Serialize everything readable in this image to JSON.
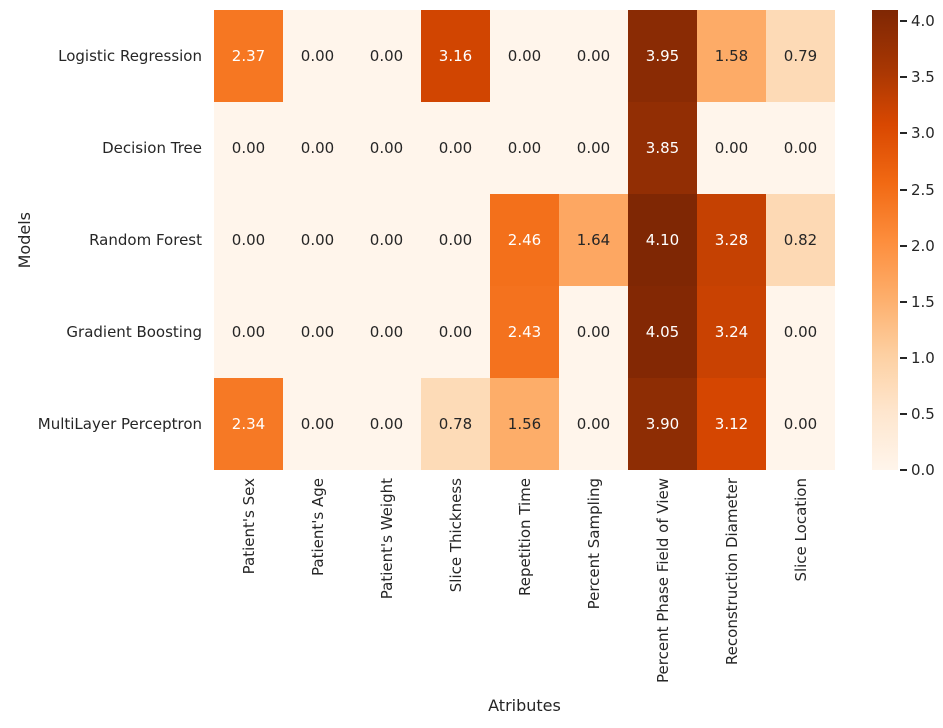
{
  "chart_data": {
    "type": "heatmap",
    "xlabel": "Atributes",
    "ylabel": "Models",
    "rows": [
      "Logistic Regression",
      "Decision Tree",
      "Random Forest",
      "Gradient Boosting",
      "MultiLayer Perceptron"
    ],
    "columns": [
      "Patient's Sex",
      "Patient's Age",
      "Patient's Weight",
      "Slice Thickness",
      "Repetition Time",
      "Percent Sampling",
      "Percent Phase Field of View",
      "Reconstruction Diameter",
      "Slice Location"
    ],
    "values": [
      [
        2.37,
        0.0,
        0.0,
        3.16,
        0.0,
        0.0,
        3.95,
        1.58,
        0.79
      ],
      [
        0.0,
        0.0,
        0.0,
        0.0,
        0.0,
        0.0,
        3.85,
        0.0,
        0.0
      ],
      [
        0.0,
        0.0,
        0.0,
        0.0,
        2.46,
        1.64,
        4.1,
        3.28,
        0.82
      ],
      [
        0.0,
        0.0,
        0.0,
        0.0,
        2.43,
        0.0,
        4.05,
        3.24,
        0.0
      ],
      [
        2.34,
        0.0,
        0.0,
        0.78,
        1.56,
        0.0,
        3.9,
        3.12,
        0.0
      ]
    ],
    "annot_decimals": 2,
    "colormap": "Oranges",
    "vmin": 0.0,
    "vmax": 4.1,
    "colorbar": {
      "tick_labels": [
        "4.0",
        "3.5",
        "3.0",
        "2.5",
        "2.0",
        "1.5",
        "1.0",
        "0.5",
        "0.0"
      ],
      "tick_values": [
        4.0,
        3.5,
        3.0,
        2.5,
        2.0,
        1.5,
        1.0,
        0.5,
        0.0
      ],
      "position": "right"
    },
    "legend_position": "none",
    "grid": false,
    "colors": {
      "background": "#ffffff",
      "tick_text": "#262626",
      "annot_dark": "#262626",
      "annot_light": "#ffffff",
      "cmap_low": "#fff5eb",
      "cmap_high": "#7f2704"
    }
  }
}
